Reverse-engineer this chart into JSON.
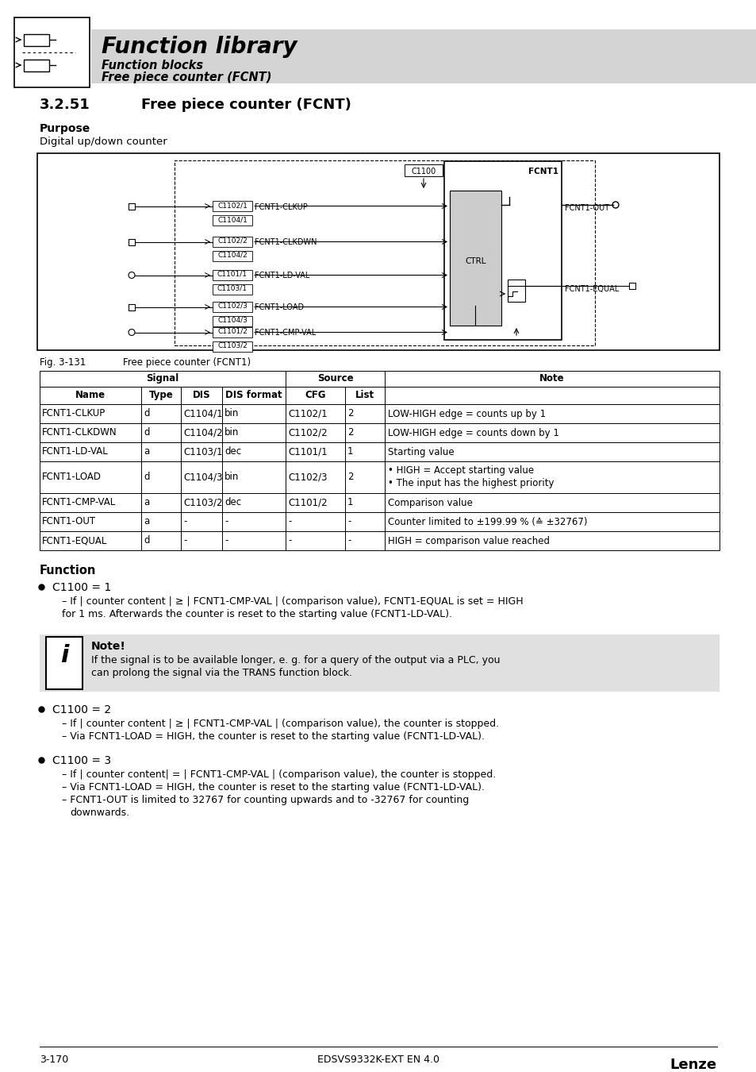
{
  "page_bg": "#ffffff",
  "header_bg": "#d4d4d4",
  "header_title": "Function library",
  "header_sub1": "Function blocks",
  "header_sub2": "Free piece counter (FCNT)",
  "section_number": "3.2.51",
  "section_title": "Free piece counter (FCNT)",
  "purpose_label": "Purpose",
  "purpose_text": "Digital up/down counter",
  "fig_label": "Fig. 3-131",
  "fig_caption": "Free piece counter (FCNT1)",
  "table_rows": [
    [
      "FCNT1-CLKUP",
      "d",
      "C1104/1",
      "bin",
      "C1102/1",
      "2",
      "LOW-HIGH edge = counts up by 1"
    ],
    [
      "FCNT1-CLKDWN",
      "d",
      "C1104/2",
      "bin",
      "C1102/2",
      "2",
      "LOW-HIGH edge = counts down by 1"
    ],
    [
      "FCNT1-LD-VAL",
      "a",
      "C1103/1",
      "dec",
      "C1101/1",
      "1",
      "Starting value"
    ],
    [
      "FCNT1-LOAD",
      "d",
      "C1104/3",
      "bin",
      "C1102/3",
      "2",
      "HIGH = Accept starting value\nThe input has the highest priority"
    ],
    [
      "FCNT1-CMP-VAL",
      "a",
      "C1103/2",
      "dec",
      "C1101/2",
      "1",
      "Comparison value"
    ],
    [
      "FCNT1-OUT",
      "a",
      "-",
      "-",
      "-",
      "-",
      "Counter limited to ±199.99 % (≙ ±32767)"
    ],
    [
      "FCNT1-EQUAL",
      "d",
      "-",
      "-",
      "-",
      "-",
      "HIGH = comparison value reached"
    ]
  ],
  "function_label": "Function",
  "bullet1_title": "C1100 = 1",
  "bullet1_sub": "– If | counter content | ≥ | FCNT1-CMP-VAL | (comparison value), FCNT1-EQUAL is set = HIGH\nfor 1 ms. Afterwards the counter is reset to the starting value (FCNT1-LD-VAL).",
  "note_title": "Note!",
  "note_text": "If the signal is to be available longer, e. g. for a query of the output via a PLC, you\ncan prolong the signal via the TRANS function block.",
  "bullet2_title": "C1100 = 2",
  "bullet2_sub1": "– If | counter content | ≥ | FCNT1-CMP-VAL | (comparison value), the counter is stopped.",
  "bullet2_sub2": "– Via FCNT1-LOAD = HIGH, the counter is reset to the starting value (FCNT1-LD-VAL).",
  "bullet3_title": "C1100 = 3",
  "bullet3_sub1": "– If | counter content| = | FCNT1-CMP-VAL | (comparison value), the counter is stopped.",
  "bullet3_sub2": "– Via FCNT1-LOAD = HIGH, the counter is reset to the starting value (FCNT1-LD-VAL).",
  "bullet3_sub3": "– FCNT1-OUT is limited to 32767 for counting upwards and to -32767 for counting",
  "bullet3_sub3b": "downwards.",
  "footer_left": "3-170",
  "footer_center": "EDSVS9332K-EXT EN 4.0",
  "footer_right": "Lenze"
}
